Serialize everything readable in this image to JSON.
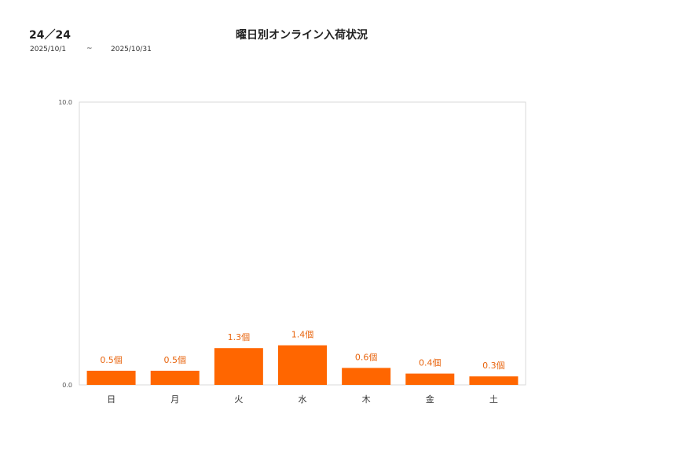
{
  "header": {
    "store_code": "24／24",
    "date_from": "2025/10/1",
    "date_separator": "~",
    "date_to": "2025/10/31"
  },
  "chart_data": {
    "type": "bar",
    "title": "曜日別オンライン入荷状況",
    "categories": [
      "日",
      "月",
      "火",
      "水",
      "木",
      "金",
      "土"
    ],
    "values": [
      0.5,
      0.5,
      1.3,
      1.4,
      0.6,
      0.4,
      0.3
    ],
    "value_labels": [
      "0.5個",
      "0.5個",
      "1.3個",
      "1.4個",
      "0.6個",
      "0.4個",
      "0.3個"
    ],
    "ylim": [
      0,
      10
    ],
    "y_tick_labels": [
      "0.0",
      "10.0"
    ],
    "grid": false,
    "legend": "none",
    "colors": {
      "bar": "#ff6600",
      "label": "#e8650f",
      "frame": "#d9d9d9"
    }
  }
}
